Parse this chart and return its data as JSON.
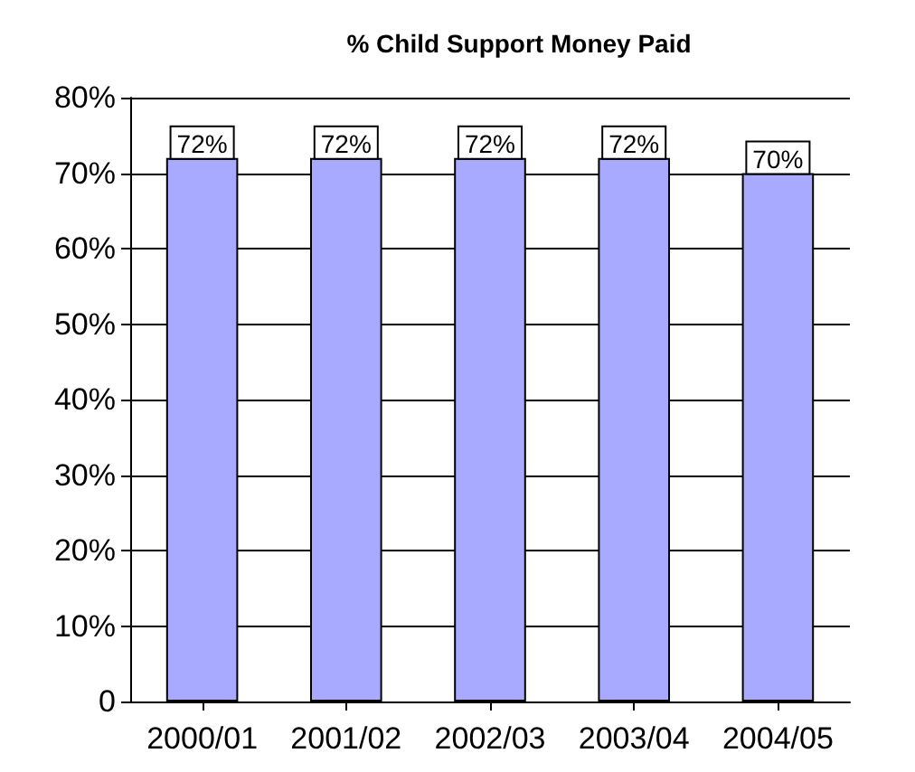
{
  "chart_data": {
    "type": "bar",
    "title": "% Child Support Money Paid",
    "categories": [
      "2000/01",
      "2001/02",
      "2002/03",
      "2003/04",
      "2004/05"
    ],
    "values": [
      72,
      72,
      72,
      72,
      70
    ],
    "value_labels": [
      "72%",
      "72%",
      "72%",
      "72%",
      "70%"
    ],
    "color": "#a8aaff",
    "ylim": [
      0,
      80
    ],
    "yticks": [
      {
        "value": 0,
        "label": "0"
      },
      {
        "value": 10,
        "label": "10%"
      },
      {
        "value": 20,
        "label": "20%"
      },
      {
        "value": 30,
        "label": "30%"
      },
      {
        "value": 40,
        "label": "40%"
      },
      {
        "value": 50,
        "label": "50%"
      },
      {
        "value": 60,
        "label": "60%"
      },
      {
        "value": 70,
        "label": "70%"
      },
      {
        "value": 80,
        "label": "80%"
      }
    ],
    "grid": "y"
  }
}
